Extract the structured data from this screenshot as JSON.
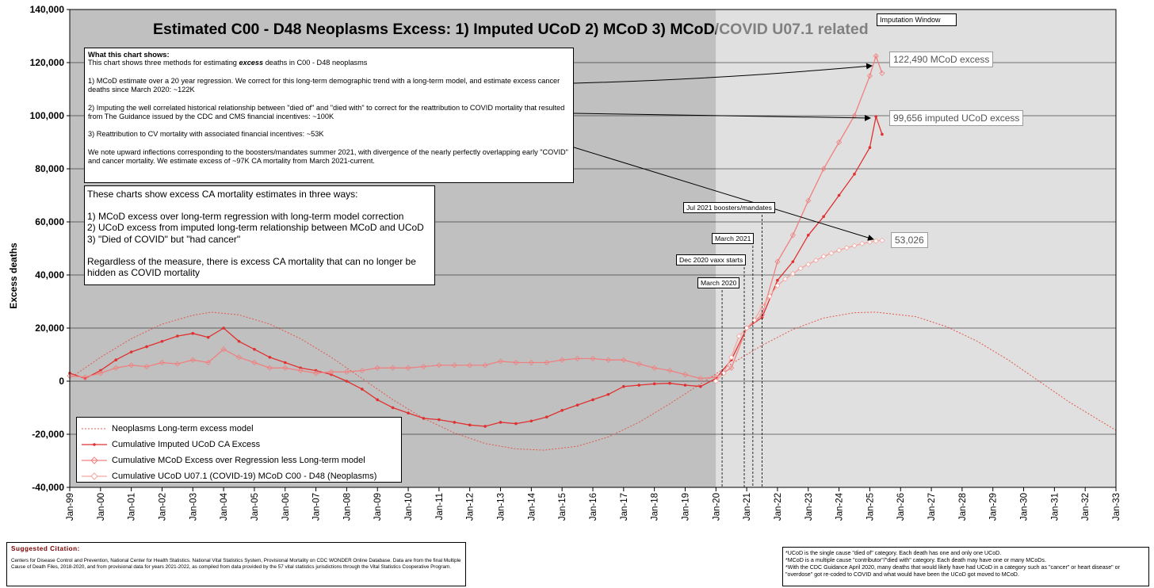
{
  "chart_data": {
    "type": "line",
    "title": "Estimated C00 - D48 Neoplasms Excess: 1) Imputed UCoD 2) MCoD 3) MCoD/COVID U07.1 related",
    "ylabel": "Excess deaths",
    "xlabel": "",
    "ylim": [
      -40000,
      140000
    ],
    "y_ticks": [
      "140,000",
      "120,000",
      "100,000",
      "80,000",
      "60,000",
      "40,000",
      "20,000",
      "0",
      "-20,000",
      "-40,000"
    ],
    "x_ticks": [
      "Jan-99",
      "Jan-00",
      "Jan-01",
      "Jan-02",
      "Jan-03",
      "Jan-04",
      "Jan-05",
      "Jan-06",
      "Jan-07",
      "Jan-08",
      "Jan-09",
      "Jan-10",
      "Jan-11",
      "Jan-12",
      "Jan-13",
      "Jan-14",
      "Jan-15",
      "Jan-16",
      "Jan-17",
      "Jan-18",
      "Jan-19",
      "Jan-20",
      "Jan-21",
      "Jan-22",
      "Jan-23",
      "Jan-24",
      "Jan-25",
      "Jan-26",
      "Jan-27",
      "Jan-28",
      "Jan-29",
      "Jan-30",
      "Jan-31",
      "Jan-32",
      "Jan-33"
    ],
    "xlim": [
      1999.0,
      2033.0
    ],
    "imputation_window": {
      "label": "Imputation Window",
      "start": 2020.0
    },
    "grid": true,
    "legend_position": "bottom-left",
    "series": [
      {
        "name": "Neoplasms Long-term excess model",
        "style": "dotted",
        "color": "#e05a50",
        "x": [
          1999.0,
          2000.0,
          2001.0,
          2002.0,
          2003.0,
          2003.6,
          2004.5,
          2005.5,
          2006.5,
          2007.5,
          2008.5,
          2009.5,
          2010.5,
          2011.5,
          2012.5,
          2013.5,
          2014.4,
          2015.5,
          2016.5,
          2017.5,
          2018.5,
          2019.5,
          2020.5,
          2021.5,
          2022.5,
          2023.5,
          2024.5,
          2025.2,
          2026.5,
          2027.5,
          2028.5,
          2029.5,
          2030.5,
          2031.5,
          2032.5,
          2033.0
        ],
        "y": [
          1000,
          9000,
          16000,
          21500,
          24800,
          26000,
          25000,
          21500,
          16000,
          9000,
          1000,
          -7000,
          -14000,
          -19500,
          -23500,
          -25500,
          -26000,
          -24500,
          -21000,
          -15500,
          -8500,
          -1000,
          6500,
          13500,
          19500,
          23800,
          25800,
          26000,
          24300,
          20500,
          15000,
          8000,
          0,
          -8000,
          -15000,
          -18500
        ]
      },
      {
        "name": "Cumulative Imputed UCoD CA Excess",
        "style": "solid-dot",
        "color": "#e03030",
        "x": [
          1999.0,
          1999.5,
          2000.0,
          2000.5,
          2001.0,
          2001.5,
          2002.0,
          2002.5,
          2003.0,
          2003.5,
          2004.0,
          2004.5,
          2005.0,
          2005.5,
          2006.0,
          2006.5,
          2007.0,
          2007.5,
          2008.0,
          2008.5,
          2009.0,
          2009.5,
          2010.0,
          2010.5,
          2011.0,
          2011.5,
          2012.0,
          2012.5,
          2013.0,
          2013.5,
          2014.0,
          2014.5,
          2015.0,
          2015.5,
          2016.0,
          2016.5,
          2017.0,
          2017.5,
          2018.0,
          2018.5,
          2019.0,
          2019.5,
          2020.0,
          2020.5,
          2021.0,
          2021.5,
          2022.0,
          2022.5,
          2023.0,
          2023.5,
          2024.0,
          2024.5,
          2025.0,
          2025.2,
          2025.4
        ],
        "y": [
          3000,
          1000,
          4000,
          8000,
          11000,
          13000,
          15000,
          17000,
          18000,
          16500,
          20000,
          15000,
          12000,
          9000,
          7000,
          5000,
          4000,
          2500,
          0,
          -3000,
          -7000,
          -10000,
          -12000,
          -14000,
          -14500,
          -15500,
          -16500,
          -17000,
          -15500,
          -16000,
          -15000,
          -13500,
          -11000,
          -9000,
          -7000,
          -5000,
          -2000,
          -1500,
          -1000,
          -800,
          -1500,
          -2000,
          1000,
          8000,
          20000,
          24000,
          38000,
          45000,
          55000,
          62000,
          70000,
          78000,
          88000,
          99656,
          93000
        ]
      },
      {
        "name": "Cumulative MCoD Excess over Regression less Long-term model",
        "style": "solid-diamond",
        "color": "#f08080",
        "x": [
          1999.0,
          1999.5,
          2000.0,
          2000.5,
          2001.0,
          2001.5,
          2002.0,
          2002.5,
          2003.0,
          2003.5,
          2004.0,
          2004.5,
          2005.0,
          2005.5,
          2006.0,
          2006.5,
          2007.0,
          2007.5,
          2008.0,
          2008.5,
          2009.0,
          2009.5,
          2010.0,
          2010.5,
          2011.0,
          2011.5,
          2012.0,
          2012.5,
          2013.0,
          2013.5,
          2014.0,
          2014.5,
          2015.0,
          2015.5,
          2016.0,
          2016.5,
          2017.0,
          2017.5,
          2018.0,
          2018.5,
          2019.0,
          2019.5,
          2020.0,
          2020.5,
          2021.0,
          2021.5,
          2022.0,
          2022.5,
          2023.0,
          2023.5,
          2024.0,
          2024.5,
          2025.0,
          2025.2,
          2025.4
        ],
        "y": [
          2000,
          1500,
          3000,
          5000,
          6000,
          5500,
          7000,
          6500,
          8000,
          7000,
          12000,
          9000,
          7000,
          5000,
          5000,
          4000,
          3000,
          3500,
          3500,
          4000,
          5000,
          5000,
          5000,
          5500,
          6000,
          6000,
          6000,
          6000,
          7500,
          7000,
          7000,
          7000,
          8000,
          8500,
          8500,
          8000,
          8000,
          6500,
          5000,
          4000,
          2500,
          1000,
          1500,
          5000,
          20000,
          25000,
          45000,
          55000,
          68000,
          80000,
          90000,
          100000,
          115000,
          122490,
          116000
        ]
      },
      {
        "name": "Cumulative UCoD U07.1 (COVID-19)  MCoD C00 - D48 (Neoplasms)",
        "style": "pale-diamond",
        "color": "#f4a6a0",
        "x": [
          2020.0,
          2020.25,
          2020.5,
          2020.75,
          2021.0,
          2021.25,
          2021.5,
          2021.75,
          2022.0,
          2022.25,
          2022.5,
          2022.75,
          2023.0,
          2023.25,
          2023.5,
          2023.75,
          2024.0,
          2024.25,
          2024.5,
          2024.75,
          2025.0,
          2025.2,
          2025.4
        ],
        "y": [
          0,
          3000,
          9000,
          17000,
          20000,
          23000,
          28000,
          32000,
          36000,
          38500,
          40500,
          42500,
          44000,
          45500,
          47000,
          48200,
          49300,
          50200,
          51000,
          51800,
          52400,
          52800,
          53026
        ]
      }
    ],
    "annotations": [
      {
        "label": "March 2020",
        "x": 2020.2
      },
      {
        "label": "Dec 2020 vaxx starts",
        "x": 2020.92
      },
      {
        "label": "March 2021",
        "x": 2021.2
      },
      {
        "label": "Jul 2021 boosters/mandates",
        "x": 2021.5
      }
    ],
    "value_labels": [
      "122,490 MCoD excess",
      "99,656 imputed UCoD excess",
      "53,026"
    ]
  },
  "explanation": {
    "heading": "What this chart shows:",
    "line1_pre": "This chart shows three methods for estimating ",
    "line1_em": "excess",
    "line1_post": " deaths in C00 - D48 neoplasms",
    "p1": "1) MCoD estimate over a 20 year regression. We correct for this long-term demographic trend with a long-term model, and estimate excess cancer deaths since March 2020: ~122K",
    "p2": "2) Imputing the well correlated historical relationship between \"died of\" and \"died with\" to correct for the reattribution to COVID mortality that resulted from The Guidance issued by the CDC and CMS financial incentives: ~100K",
    "p3": "3) Reattribution to CV mortality with associated financial incentives: ~53K",
    "p4": "We note upward inflections corresponding to the boosters/mandates summer 2021, with divergence of the nearly perfectly overlapping early \"COVID\" and cancer mortality. We estimate excess of ~97K CA mortality from March 2021-current."
  },
  "summary": {
    "intro": "These charts show excess CA mortality estimates in three ways:",
    "l1": "1) MCoD excess over long-term regression with long-term model correction",
    "l2": "2) UCoD excess from imputed long-term relationship between MCoD and UCoD",
    "l3": "3) \"Died of COVID\" but \"had cancer\"",
    "closing": "Regardless of the measure, there is excess CA mortality that can no longer be hidden as COVID mortality"
  },
  "citation": {
    "title": "Suggested Citation:",
    "text": "Centers for Disease Control and Prevention, National Center for Health Statistics. National Vital Statistics System, Provisional Mortality on CDC WONDER Online Database. Data are from the final Multiple Cause of Death Files, 2018-2020, and from provisional data for years 2021-2022, as compiled from data provided by the 57 vital statistics jurisdictions through the Vital Statistics Cooperative Program."
  },
  "notes": {
    "n1": "*UCoD is the single cause \"died of\" category. Each death has one and only one UCoD.",
    "n2": "*MCoD is a multiple cause \"contributor\"/\"died with\" category. Each death may have one or many MCoDs.",
    "n3": "*With the CDC Guidance April 2020, many deaths that would likely have had UCoD in a category such as \"cancer\" or heart disease\" or \"overdose\" got re-coded to COVID and what would have been the UCoD got moved to MCoD."
  },
  "colors": {
    "plot_bg_history": "#c0c0c0",
    "plot_bg_imputation": "#e0e0e0",
    "title_history": "#000000",
    "title_imputation": "#808080"
  }
}
